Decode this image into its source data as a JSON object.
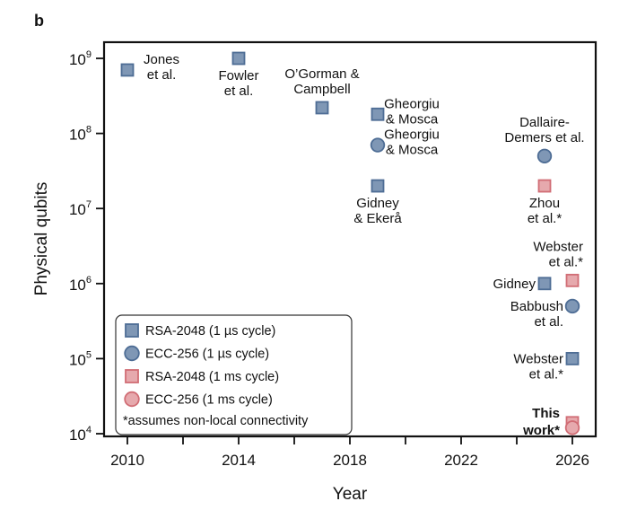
{
  "panel_label": "b",
  "chart_data": {
    "type": "scatter",
    "title": "",
    "xlabel": "Year",
    "ylabel": "Physical qubits",
    "xlim": [
      2009.2,
      2026.8
    ],
    "ylim": [
      10000,
      1200000000
    ],
    "yscale": "log",
    "grid": false,
    "x_ticks": [
      2010,
      2014,
      2018,
      2022,
      2026
    ],
    "x_minor_ticks": [
      2012,
      2016,
      2020,
      2024
    ],
    "y_ticks": [
      {
        "value": 1000000000,
        "base": "10",
        "exp": "9"
      },
      {
        "value": 100000000,
        "base": "10",
        "exp": "8"
      },
      {
        "value": 10000000,
        "base": "10",
        "exp": "7"
      },
      {
        "value": 1000000,
        "base": "10",
        "exp": "6"
      },
      {
        "value": 100000,
        "base": "10",
        "exp": "5"
      },
      {
        "value": 10000,
        "base": "10",
        "exp": "4"
      }
    ],
    "legend": {
      "placement": "bottom-left",
      "entries": [
        {
          "label": "RSA-2048 (1 µs cycle)",
          "series": "rsa_us"
        },
        {
          "label": "ECC-256 (1 µs cycle)",
          "series": "ecc_us"
        },
        {
          "label": "RSA-2048 (1 ms cycle)",
          "series": "rsa_ms"
        },
        {
          "label": "ECC-256 (1 ms cycle)",
          "series": "ecc_ms"
        }
      ],
      "footnote": "*assumes non-local connectivity"
    },
    "series_styles": {
      "rsa_us": {
        "marker": "square",
        "fill": "#7f97b5",
        "stroke": "#4e6d95"
      },
      "ecc_us": {
        "marker": "circle",
        "fill": "#7f97b5",
        "stroke": "#4e6d95"
      },
      "rsa_ms": {
        "marker": "square",
        "fill": "#e6a9ad",
        "stroke": "#d16d75"
      },
      "ecc_ms": {
        "marker": "circle",
        "fill": "#e6a9ad",
        "stroke": "#d16d75"
      }
    },
    "points": [
      {
        "series": "rsa_us",
        "x": 2010,
        "y": 700000000,
        "label": [
          "Jones",
          "et al."
        ],
        "label_pos": "right"
      },
      {
        "series": "rsa_us",
        "x": 2014,
        "y": 1000000000,
        "label": [
          "Fowler",
          "et al."
        ],
        "label_pos": "below"
      },
      {
        "series": "rsa_us",
        "x": 2017,
        "y": 220000000,
        "label": [
          "O’Gorman &",
          "Campbell"
        ],
        "label_pos": "above"
      },
      {
        "series": "rsa_us",
        "x": 2019,
        "y": 180000000,
        "label": [
          "Gheorgiu",
          "& Mosca"
        ],
        "label_pos": "right"
      },
      {
        "series": "ecc_us",
        "x": 2019,
        "y": 70000000,
        "label": [
          "Gheorgiu",
          "& Mosca"
        ],
        "label_pos": "right"
      },
      {
        "series": "rsa_us",
        "x": 2019,
        "y": 20000000,
        "label": [
          "Gidney",
          "& Ekerå"
        ],
        "label_pos": "below"
      },
      {
        "series": "ecc_us",
        "x": 2025,
        "y": 50000000,
        "label": [
          "Dallaire-",
          "Demers et al."
        ],
        "label_pos": "above"
      },
      {
        "series": "rsa_ms",
        "x": 2025,
        "y": 20000000,
        "label": [
          "Zhou",
          "et al.*"
        ],
        "label_pos": "below"
      },
      {
        "series": "rsa_ms",
        "x": 2026,
        "y": 1100000,
        "label": [
          "Webster",
          "et al.*"
        ],
        "label_pos": "above-left"
      },
      {
        "series": "rsa_us",
        "x": 2025,
        "y": 1000000,
        "label": [
          "Gidney"
        ],
        "label_pos": "left"
      },
      {
        "series": "ecc_us",
        "x": 2026,
        "y": 500000,
        "label": [
          "Babbush",
          "et al."
        ],
        "label_pos": "left"
      },
      {
        "series": "rsa_us",
        "x": 2026,
        "y": 100000,
        "label": [
          "Webster",
          "et al.*"
        ],
        "label_pos": "left"
      },
      {
        "series": "rsa_ms",
        "x": 2026,
        "y": 14000,
        "label": [
          "This",
          "work*"
        ],
        "label_pos": "left",
        "bold": true
      },
      {
        "series": "ecc_ms",
        "x": 2026,
        "y": 12000,
        "label": [],
        "label_pos": "none"
      }
    ]
  }
}
